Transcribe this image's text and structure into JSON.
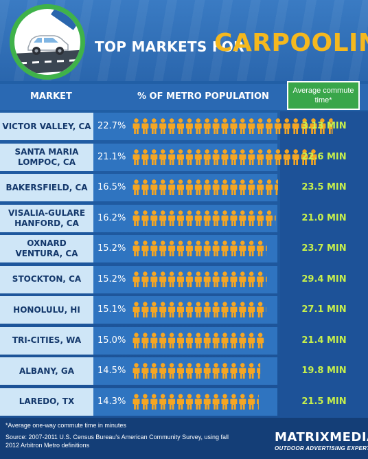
{
  "header": {
    "title_part1": "TOP MARKETS FOR",
    "title_part2": "CARPOOLING"
  },
  "columns": {
    "market": "MARKET",
    "pct": "% OF METRO POPULATION",
    "commute": "Average commute time*"
  },
  "colors": {
    "person": "#f5a623",
    "commute_text": "#c7f04c",
    "title_accent": "#f5b81e",
    "commute_header": "#39a64a"
  },
  "icons": {
    "person": "person-icon",
    "car": "car-icon"
  },
  "chart_data": {
    "type": "table",
    "title": "TOP MARKETS FOR CARPOOLING",
    "columns": [
      "MARKET",
      "% OF METRO POPULATION",
      "Average commute time*"
    ],
    "rows": [
      {
        "market": "VICTOR VALLEY, CA",
        "pct": 22.7,
        "pct_label": "22.7%",
        "commute": "3.13 MIN"
      },
      {
        "market": "SANTA MARIA\nLOMPOC, CA",
        "pct": 21.1,
        "pct_label": "21.1%",
        "commute": "22.6 MIN"
      },
      {
        "market": "BAKERSFIELD, CA",
        "pct": 16.5,
        "pct_label": "16.5%",
        "commute": "23.5 MIN"
      },
      {
        "market": "VISALIA-GULARE\nHANFORD, CA",
        "pct": 16.2,
        "pct_label": "16.2%",
        "commute": "21.0 MIN"
      },
      {
        "market": "OXNARD\nVENTURA, CA",
        "pct": 15.2,
        "pct_label": "15.2%",
        "commute": "23.7 MIN"
      },
      {
        "market": "STOCKTON, CA",
        "pct": 15.2,
        "pct_label": "15.2%",
        "commute": "29.4 MIN"
      },
      {
        "market": "HONOLULU, HI",
        "pct": 15.1,
        "pct_label": "15.1%",
        "commute": "27.1 MIN"
      },
      {
        "market": "TRI-CITIES, WA",
        "pct": 15.0,
        "pct_label": "15.0%",
        "commute": "21.4 MIN"
      },
      {
        "market": "ALBANY, GA",
        "pct": 14.5,
        "pct_label": "14.5%",
        "commute": "19.8 MIN"
      },
      {
        "market": "LAREDO, TX",
        "pct": 14.3,
        "pct_label": "14.3%",
        "commute": "21.5 MIN"
      }
    ]
  },
  "footer": {
    "note": "*Average one-way commute time in minutes",
    "source": "Source: 2007-2011 U.S. Census Bureau's American Community Survey, using fall 2012 Arbitron Metro definitions",
    "brand_part1": "MATRIX",
    "brand_part2": "MEDIA",
    "brand_tagline": "OUTDOOR ADVERTISING EXPERTS"
  }
}
